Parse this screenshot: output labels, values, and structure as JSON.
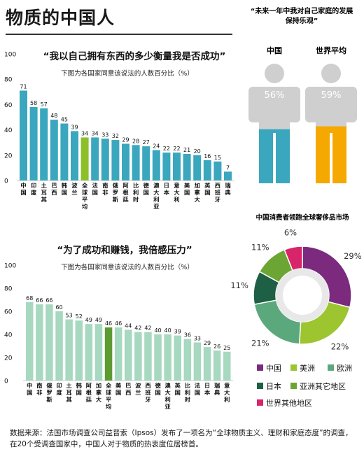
{
  "title": "物质的中国人",
  "footer": "数据来源：法国市场调查公司益普索（Ipsos）发布了一项名为“全球物质主义、理财和家庭态度”的调查，在20个受调查国家中，中国人对于物质的热衷度位居榜首。",
  "colors": {
    "teal": "#3aa7be",
    "teal_head": "#2f9ab1",
    "green_highlight": "#8dbf2b",
    "mint": "#a7d8c0",
    "dark_green": "#5d9b31",
    "person_grey": "#cfcfcf",
    "orange": "#f5a800",
    "purple": "#7b2a7e",
    "lime": "#9cc52f",
    "sea_green": "#5ba87c",
    "forest": "#1e6045",
    "olive": "#6da534",
    "magenta": "#d8246a"
  },
  "chart_data": [
    {
      "type": "bar",
      "title": "“我以自己拥有东西的多少衡量我是否成功”",
      "subtitle": "下图为各国家同意该说法的人数百分比（%）",
      "categories": [
        "中国",
        "印度",
        "土耳其",
        "巴西",
        "韩国",
        "波兰",
        "全球平均",
        "法国",
        "南非",
        "俄罗斯",
        "阿根廷",
        "比利时",
        "德国",
        "澳大利亚",
        "日本",
        "意大利",
        "美国",
        "加拿大",
        "英国",
        "西班牙",
        "瑞典"
      ],
      "values": [
        71,
        58,
        57,
        48,
        45,
        39,
        34,
        34,
        33,
        32,
        29,
        28,
        27,
        24,
        22,
        22,
        21,
        20,
        16,
        15,
        7
      ],
      "highlight_index": 6,
      "yticks": [
        0,
        20,
        40,
        60,
        80,
        100
      ],
      "ylim": [
        0,
        100
      ]
    },
    {
      "type": "bar",
      "title": "“为了成功和赚钱，我倍感压力”",
      "subtitle": "下图为各国家同意该说法的人数百分比（%）",
      "categories": [
        "中国",
        "南非",
        "俄罗斯",
        "印度",
        "土耳其",
        "韩国",
        "阿根廷",
        "加拿大",
        "全球平均",
        "美国",
        "巴西",
        "波兰",
        "西班牙",
        "德国",
        "澳大利亚",
        "英国",
        "比利时",
        "法国",
        "日本",
        "瑞典",
        "意大利"
      ],
      "values": [
        68,
        66,
        66,
        60,
        53,
        52,
        49,
        49,
        46,
        46,
        44,
        42,
        42,
        40,
        40,
        39,
        36,
        33,
        29,
        26,
        25
      ],
      "highlight_index": 8,
      "yticks": [
        0,
        20,
        40,
        60,
        80,
        100
      ],
      "ylim": [
        0,
        100
      ]
    },
    {
      "type": "pictograph",
      "title": "“未来一年中我对自己家庭的发展保持乐观”",
      "series": [
        {
          "name": "中国",
          "value": 56,
          "label": "56%"
        },
        {
          "name": "世界平均",
          "value": 59,
          "label": "59%"
        }
      ]
    },
    {
      "type": "pie",
      "title": "中国消费者领跑全球奢侈品市场",
      "slices": [
        {
          "name": "中国",
          "value": 29,
          "label": "29%",
          "color": "#7b2a7e"
        },
        {
          "name": "美洲",
          "value": 22,
          "label": "22%",
          "color": "#9cc52f"
        },
        {
          "name": "欧洲",
          "value": 21,
          "label": "21%",
          "color": "#5ba87c"
        },
        {
          "name": "日本",
          "value": 11,
          "label": "11%",
          "color": "#1e6045"
        },
        {
          "name": "亚洲其它地区",
          "value": 11,
          "label": "11%",
          "color": "#6da534"
        },
        {
          "name": "世界其他地区",
          "value": 6,
          "label": "6%",
          "color": "#d8246a"
        }
      ]
    }
  ]
}
